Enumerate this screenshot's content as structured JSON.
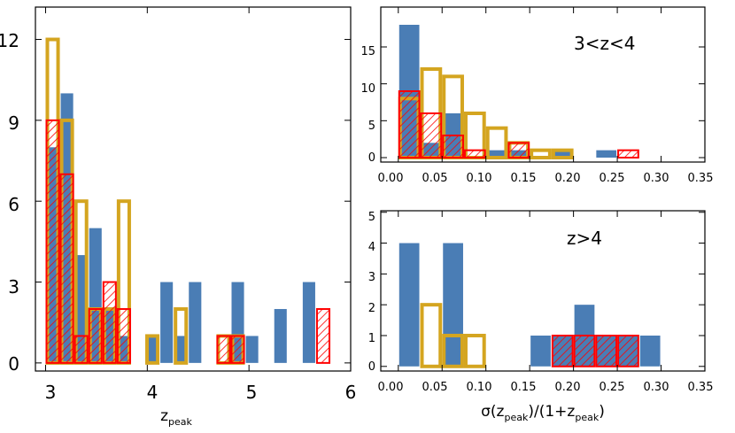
{
  "colors": {
    "blue": "#4a7db5",
    "gold": "#d4a520",
    "red": "#ff0000"
  },
  "chart_data": [
    {
      "type": "bar",
      "panel": "left",
      "xlabel_main": "z",
      "xlabel_sub": "peak",
      "xlim": [
        2.9,
        6.0
      ],
      "ylim": [
        -0.3,
        13.2
      ],
      "xticks": [
        "3",
        "4",
        "5",
        "6"
      ],
      "yticks": [
        "0",
        "3",
        "6",
        "9",
        "12"
      ],
      "bin_width": 0.14,
      "series": [
        {
          "style": "filled-blue",
          "x": [
            3.07,
            3.21,
            3.35,
            3.49,
            3.63,
            3.77,
            3.91,
            4.05,
            4.19,
            4.33,
            4.47,
            4.61,
            4.75,
            4.89,
            5.03,
            5.17,
            5.31,
            5.45,
            5.59,
            5.73
          ],
          "values": [
            8,
            10,
            4,
            5,
            2,
            1,
            0,
            1,
            3,
            1,
            3,
            0,
            0,
            3,
            1,
            0,
            2,
            0,
            3,
            0
          ]
        },
        {
          "style": "outline-gold",
          "x": [
            3.07,
            3.21,
            3.35,
            3.49,
            3.63,
            3.77,
            3.91,
            4.05,
            4.19,
            4.33,
            4.47,
            4.61,
            4.75,
            4.89
          ],
          "values": [
            12,
            9,
            6,
            2,
            2,
            6,
            0,
            1,
            0,
            2,
            0,
            0,
            1,
            1
          ]
        },
        {
          "style": "hatched-red",
          "x": [
            3.07,
            3.21,
            3.35,
            3.49,
            3.63,
            3.77,
            3.91,
            4.05,
            4.19,
            4.33,
            4.47,
            4.61,
            4.75,
            4.89,
            5.03,
            5.17,
            5.31,
            5.45,
            5.59,
            5.73
          ],
          "values": [
            9,
            7,
            1,
            2,
            3,
            2,
            0,
            0,
            0,
            0,
            0,
            0,
            1,
            1,
            0,
            0,
            0,
            0,
            0,
            2
          ]
        }
      ]
    },
    {
      "type": "bar",
      "panel": "top-right",
      "annotation": "3<z<4",
      "xlim": [
        -0.02,
        0.35
      ],
      "ylim": [
        -0.6,
        20.4
      ],
      "xticks": [
        "0.00",
        "0.05",
        "0.10",
        "0.15",
        "0.20",
        "0.25",
        "0.30",
        "0.35"
      ],
      "yticks": [
        "0",
        "5",
        "10",
        "15"
      ],
      "bin_width": 0.025,
      "series": [
        {
          "style": "filled-blue",
          "x": [
            0.0125,
            0.0375,
            0.0625,
            0.0875,
            0.1125,
            0.1375,
            0.1625,
            0.1875,
            0.2125,
            0.2375,
            0.2625
          ],
          "values": [
            18,
            2,
            6,
            0,
            1,
            1,
            0,
            1,
            0,
            1,
            0
          ]
        },
        {
          "style": "outline-gold",
          "x": [
            0.0125,
            0.0375,
            0.0625,
            0.0875,
            0.1125,
            0.1375,
            0.1625,
            0.1875
          ],
          "values": [
            8,
            12,
            11,
            6,
            4,
            2,
            1,
            1
          ]
        },
        {
          "style": "hatched-red",
          "x": [
            0.0125,
            0.0375,
            0.0625,
            0.0875,
            0.1125,
            0.1375,
            0.1625,
            0.1875,
            0.2125,
            0.2375,
            0.2625
          ],
          "values": [
            9,
            6,
            3,
            1,
            0,
            2,
            0,
            0,
            0,
            0,
            1
          ]
        }
      ]
    },
    {
      "type": "bar",
      "panel": "bottom-right",
      "annotation": "z>4",
      "xlabel_parts": [
        "σ(z",
        "peak",
        ")/(1+z",
        "peak",
        ")"
      ],
      "xlim": [
        -0.02,
        0.35
      ],
      "ylim": [
        -0.15,
        5.05
      ],
      "xticks": [
        "0.00",
        "0.05",
        "0.10",
        "0.15",
        "0.20",
        "0.25",
        "0.30",
        "0.35"
      ],
      "yticks": [
        "0",
        "1",
        "2",
        "3",
        "4",
        "5"
      ],
      "bin_width": 0.025,
      "series": [
        {
          "style": "filled-blue",
          "x": [
            0.0125,
            0.0375,
            0.0625,
            0.0875,
            0.1125,
            0.1375,
            0.1625,
            0.1875,
            0.2125,
            0.2375,
            0.2625,
            0.2875
          ],
          "values": [
            4,
            0,
            4,
            0,
            0,
            0,
            1,
            1,
            2,
            1,
            1,
            1
          ]
        },
        {
          "style": "outline-gold",
          "x": [
            0.0375,
            0.0625,
            0.0875
          ],
          "values": [
            2,
            1,
            1
          ]
        },
        {
          "style": "hatched-red",
          "x": [
            0.1875,
            0.2125,
            0.2375,
            0.2625
          ],
          "values": [
            1,
            1,
            1,
            1
          ]
        }
      ]
    }
  ]
}
